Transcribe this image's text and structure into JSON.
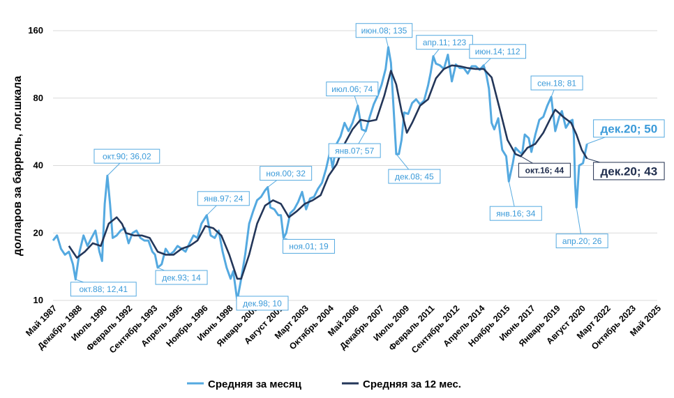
{
  "chart_data": {
    "type": "line",
    "ylabel": "долларов за баррель, лог.шкала",
    "yscale": "log",
    "ylim": [
      10,
      160
    ],
    "yticks": [
      "10",
      "20",
      "40",
      "80",
      "160"
    ],
    "xticks": [
      "Май 1987",
      "Декабрь 1988",
      "Июль 1990",
      "Февраль 1992",
      "Сентябрь 1993",
      "Апрель 1995",
      "Ноябрь 1996",
      "Июнь 1998",
      "Январь 2000",
      "Август 2001",
      "Март 2003",
      "Октябрь 2004",
      "Май 2006",
      "Декабрь 2007",
      "Июль 2009",
      "Февраль 2011",
      "Сентябрь 2012",
      "Апрель 2014",
      "Ноябрь 2015",
      "Июнь 2017",
      "Январь 2019",
      "Август 2020",
      "Март 2022",
      "Октябрь 2023",
      "Май 2025"
    ],
    "xlim": [
      "1987-05",
      "2025-05"
    ],
    "grid": "horizontal",
    "legend_position": "bottom",
    "colors": {
      "monthly": "#54a9e0",
      "annual": "#233659"
    },
    "series": [
      {
        "name": "Средняя за месяц",
        "points": [
          [
            "1987-05",
            18.5
          ],
          [
            "1987-08",
            19.5
          ],
          [
            "1987-11",
            17.0
          ],
          [
            "1988-02",
            16.0
          ],
          [
            "1988-05",
            16.5
          ],
          [
            "1988-08",
            14.5
          ],
          [
            "1988-10",
            12.41
          ],
          [
            "1989-01",
            16.5
          ],
          [
            "1989-04",
            19.5
          ],
          [
            "1989-07",
            17.5
          ],
          [
            "1989-10",
            19.0
          ],
          [
            "1990-01",
            20.5
          ],
          [
            "1990-04",
            16.5
          ],
          [
            "1990-06",
            15.0
          ],
          [
            "1990-08",
            27.0
          ],
          [
            "1990-10",
            36.02
          ],
          [
            "1990-12",
            27.0
          ],
          [
            "1991-02",
            19.0
          ],
          [
            "1991-05",
            19.5
          ],
          [
            "1991-08",
            20.5
          ],
          [
            "1991-11",
            21.0
          ],
          [
            "1992-02",
            18.0
          ],
          [
            "1992-05",
            20.0
          ],
          [
            "1992-08",
            20.5
          ],
          [
            "1992-11",
            19.0
          ],
          [
            "1993-02",
            18.5
          ],
          [
            "1993-05",
            18.5
          ],
          [
            "1993-08",
            16.5
          ],
          [
            "1993-10",
            16.0
          ],
          [
            "1993-12",
            14.0
          ],
          [
            "1994-03",
            14.5
          ],
          [
            "1994-06",
            17.0
          ],
          [
            "1994-09",
            16.0
          ],
          [
            "1994-12",
            16.5
          ],
          [
            "1995-03",
            17.5
          ],
          [
            "1995-06",
            17.0
          ],
          [
            "1995-09",
            16.5
          ],
          [
            "1995-12",
            18.0
          ],
          [
            "1996-03",
            19.5
          ],
          [
            "1996-06",
            19.0
          ],
          [
            "1996-09",
            22.0
          ],
          [
            "1997-01",
            24.0
          ],
          [
            "1997-04",
            19.5
          ],
          [
            "1997-07",
            19.0
          ],
          [
            "1997-10",
            20.5
          ],
          [
            "1998-01",
            16.5
          ],
          [
            "1998-04",
            14.0
          ],
          [
            "1998-07",
            12.5
          ],
          [
            "1998-09",
            13.5
          ],
          [
            "1998-12",
            10.0
          ],
          [
            "1999-03",
            12.5
          ],
          [
            "1999-06",
            16.0
          ],
          [
            "1999-09",
            22.0
          ],
          [
            "1999-12",
            25.0
          ],
          [
            "2000-03",
            28.0
          ],
          [
            "2000-06",
            29.0
          ],
          [
            "2000-09",
            31.0
          ],
          [
            "2000-11",
            32.0
          ],
          [
            "2001-01",
            26.0
          ],
          [
            "2001-04",
            25.5
          ],
          [
            "2001-07",
            24.0
          ],
          [
            "2001-09",
            24.0
          ],
          [
            "2001-11",
            19.0
          ],
          [
            "2002-01",
            20.0
          ],
          [
            "2002-04",
            24.5
          ],
          [
            "2002-07",
            25.5
          ],
          [
            "2002-10",
            27.5
          ],
          [
            "2003-01",
            30.5
          ],
          [
            "2003-04",
            25.5
          ],
          [
            "2003-07",
            28.5
          ],
          [
            "2003-10",
            29.0
          ],
          [
            "2004-01",
            31.5
          ],
          [
            "2004-04",
            33.5
          ],
          [
            "2004-07",
            38.5
          ],
          [
            "2004-10",
            46.0
          ],
          [
            "2004-12",
            39.0
          ],
          [
            "2005-03",
            50.0
          ],
          [
            "2005-06",
            54.0
          ],
          [
            "2005-09",
            62.0
          ],
          [
            "2005-12",
            57.0
          ],
          [
            "2006-03",
            62.0
          ],
          [
            "2006-07",
            74.0
          ],
          [
            "2006-10",
            58.0
          ],
          [
            "2007-01",
            57.0
          ],
          [
            "2007-04",
            66.0
          ],
          [
            "2007-07",
            75.0
          ],
          [
            "2007-10",
            82.0
          ],
          [
            "2008-01",
            92.0
          ],
          [
            "2008-04",
            108.0
          ],
          [
            "2008-06",
            135.0
          ],
          [
            "2008-08",
            115.0
          ],
          [
            "2008-10",
            72.0
          ],
          [
            "2008-12",
            45.0
          ],
          [
            "2009-02",
            45.0
          ],
          [
            "2009-04",
            52.0
          ],
          [
            "2009-06",
            69.0
          ],
          [
            "2009-09",
            68.0
          ],
          [
            "2009-12",
            76.0
          ],
          [
            "2010-03",
            79.0
          ],
          [
            "2010-06",
            75.0
          ],
          [
            "2010-09",
            78.0
          ],
          [
            "2010-12",
            91.0
          ],
          [
            "2011-02",
            104.0
          ],
          [
            "2011-04",
            123.0
          ],
          [
            "2011-06",
            114.0
          ],
          [
            "2011-09",
            112.0
          ],
          [
            "2011-12",
            108.0
          ],
          [
            "2012-03",
            125.0
          ],
          [
            "2012-06",
            95.0
          ],
          [
            "2012-09",
            113.0
          ],
          [
            "2012-12",
            109.0
          ],
          [
            "2013-03",
            109.0
          ],
          [
            "2013-06",
            103.0
          ],
          [
            "2013-09",
            111.0
          ],
          [
            "2013-12",
            111.0
          ],
          [
            "2014-03",
            107.0
          ],
          [
            "2014-06",
            112.0
          ],
          [
            "2014-08",
            102.0
          ],
          [
            "2014-10",
            88.0
          ],
          [
            "2014-12",
            62.0
          ],
          [
            "2015-02",
            58.0
          ],
          [
            "2015-05",
            65.0
          ],
          [
            "2015-08",
            47.0
          ],
          [
            "2015-11",
            44.0
          ],
          [
            "2016-01",
            34.0
          ],
          [
            "2016-04",
            41.0
          ],
          [
            "2016-06",
            48.0
          ],
          [
            "2016-09",
            46.0
          ],
          [
            "2016-11",
            45.0
          ],
          [
            "2017-01",
            55.0
          ],
          [
            "2017-04",
            53.0
          ],
          [
            "2017-06",
            46.0
          ],
          [
            "2017-09",
            55.0
          ],
          [
            "2017-12",
            64.0
          ],
          [
            "2018-03",
            66.0
          ],
          [
            "2018-06",
            74.0
          ],
          [
            "2018-09",
            81.0
          ],
          [
            "2018-11",
            64.0
          ],
          [
            "2018-12",
            57.0
          ],
          [
            "2019-03",
            66.0
          ],
          [
            "2019-05",
            70.0
          ],
          [
            "2019-08",
            59.0
          ],
          [
            "2019-11",
            63.0
          ],
          [
            "2020-01",
            64.0
          ],
          [
            "2020-02",
            55.0
          ],
          [
            "2020-03",
            33.0
          ],
          [
            "2020-04",
            26.0
          ],
          [
            "2020-06",
            40.0
          ],
          [
            "2020-09",
            41.0
          ],
          [
            "2020-12",
            50.0
          ]
        ]
      },
      {
        "name": "Средняя за 12 мес.",
        "points": [
          [
            "1988-05",
            17.5
          ],
          [
            "1988-11",
            15.5
          ],
          [
            "1989-05",
            16.5
          ],
          [
            "1989-11",
            18.0
          ],
          [
            "1990-05",
            17.5
          ],
          [
            "1990-11",
            22.0
          ],
          [
            "1991-05",
            23.5
          ],
          [
            "1991-09",
            22.0
          ],
          [
            "1991-12",
            20.0
          ],
          [
            "1992-06",
            19.5
          ],
          [
            "1992-12",
            19.5
          ],
          [
            "1993-06",
            19.0
          ],
          [
            "1993-12",
            16.5
          ],
          [
            "1994-06",
            16.0
          ],
          [
            "1994-12",
            16.0
          ],
          [
            "1995-06",
            17.0
          ],
          [
            "1995-12",
            17.5
          ],
          [
            "1996-06",
            18.5
          ],
          [
            "1996-12",
            21.5
          ],
          [
            "1997-06",
            21.0
          ],
          [
            "1997-12",
            19.5
          ],
          [
            "1998-06",
            16.0
          ],
          [
            "1998-12",
            12.5
          ],
          [
            "1999-03",
            12.5
          ],
          [
            "1999-09",
            16.0
          ],
          [
            "2000-03",
            22.0
          ],
          [
            "2000-09",
            26.5
          ],
          [
            "2001-03",
            28.0
          ],
          [
            "2001-09",
            27.0
          ],
          [
            "2002-03",
            23.5
          ],
          [
            "2002-09",
            25.0
          ],
          [
            "2003-03",
            27.0
          ],
          [
            "2003-09",
            28.0
          ],
          [
            "2004-03",
            29.5
          ],
          [
            "2004-09",
            36.0
          ],
          [
            "2005-03",
            40.5
          ],
          [
            "2005-09",
            50.0
          ],
          [
            "2006-03",
            58.0
          ],
          [
            "2006-09",
            64.0
          ],
          [
            "2007-03",
            63.0
          ],
          [
            "2007-09",
            64.0
          ],
          [
            "2008-03",
            82.0
          ],
          [
            "2008-08",
            106.0
          ],
          [
            "2008-12",
            92.0
          ],
          [
            "2009-04",
            70.0
          ],
          [
            "2009-08",
            56.0
          ],
          [
            "2009-12",
            62.0
          ],
          [
            "2010-06",
            74.0
          ],
          [
            "2010-12",
            79.0
          ],
          [
            "2011-06",
            98.0
          ],
          [
            "2011-12",
            108.0
          ],
          [
            "2012-06",
            112.0
          ],
          [
            "2012-12",
            111.0
          ],
          [
            "2013-06",
            109.0
          ],
          [
            "2013-12",
            108.0
          ],
          [
            "2014-06",
            108.0
          ],
          [
            "2014-12",
            99.0
          ],
          [
            "2015-06",
            72.0
          ],
          [
            "2015-12",
            52.0
          ],
          [
            "2016-06",
            45.0
          ],
          [
            "2016-10",
            44.0
          ],
          [
            "2017-03",
            48.0
          ],
          [
            "2017-09",
            50.0
          ],
          [
            "2018-03",
            56.0
          ],
          [
            "2018-09",
            66.0
          ],
          [
            "2018-12",
            71.0
          ],
          [
            "2019-06",
            66.0
          ],
          [
            "2019-12",
            62.0
          ],
          [
            "2020-04",
            55.0
          ],
          [
            "2020-08",
            47.0
          ],
          [
            "2020-12",
            43.0
          ]
        ]
      }
    ],
    "annotations": [
      {
        "text": "окт.88; 12,41",
        "date": "1988-10",
        "value": 12.41,
        "series": 0,
        "style": "light"
      },
      {
        "text": "окт.90; 36,02",
        "date": "1990-10",
        "value": 36.02,
        "series": 0,
        "style": "light"
      },
      {
        "text": "дек.93; 14",
        "date": "1993-12",
        "value": 14.0,
        "series": 0,
        "style": "light"
      },
      {
        "text": "янв.97; 24",
        "date": "1997-01",
        "value": 24.0,
        "series": 0,
        "style": "light"
      },
      {
        "text": "дек.98; 10",
        "date": "1998-12",
        "value": 10.0,
        "series": 0,
        "style": "light"
      },
      {
        "text": "ноя.00; 32",
        "date": "2000-11",
        "value": 32.0,
        "series": 0,
        "style": "light"
      },
      {
        "text": "ноя.01; 19",
        "date": "2001-11",
        "value": 19.0,
        "series": 0,
        "style": "light"
      },
      {
        "text": "июл.06; 74",
        "date": "2006-07",
        "value": 74.0,
        "series": 0,
        "style": "light"
      },
      {
        "text": "янв.07; 57",
        "date": "2007-01",
        "value": 57.0,
        "series": 0,
        "style": "light"
      },
      {
        "text": "июн.08; 135",
        "date": "2008-06",
        "value": 135.0,
        "series": 0,
        "style": "light"
      },
      {
        "text": "дек.08; 45",
        "date": "2008-12",
        "value": 45.0,
        "series": 0,
        "style": "light"
      },
      {
        "text": "апр.11; 123",
        "date": "2011-04",
        "value": 123.0,
        "series": 0,
        "style": "light"
      },
      {
        "text": "июн.14; 112",
        "date": "2014-06",
        "value": 112.0,
        "series": 0,
        "style": "light"
      },
      {
        "text": "янв.16; 34",
        "date": "2016-01",
        "value": 34.0,
        "series": 0,
        "style": "light"
      },
      {
        "text": "окт.16; 44",
        "date": "2016-10",
        "value": 44.0,
        "series": 1,
        "style": "dark"
      },
      {
        "text": "сен.18; 81",
        "date": "2018-09",
        "value": 81.0,
        "series": 0,
        "style": "light"
      },
      {
        "text": "апр.20; 26",
        "date": "2020-04",
        "value": 26.0,
        "series": 0,
        "style": "light"
      },
      {
        "text": "дек.20; 50",
        "date": "2020-12",
        "value": 50.0,
        "series": 0,
        "style": "light-large"
      },
      {
        "text": "дек.20; 43",
        "date": "2020-12",
        "value": 43.0,
        "series": 1,
        "style": "dark-large"
      }
    ]
  }
}
